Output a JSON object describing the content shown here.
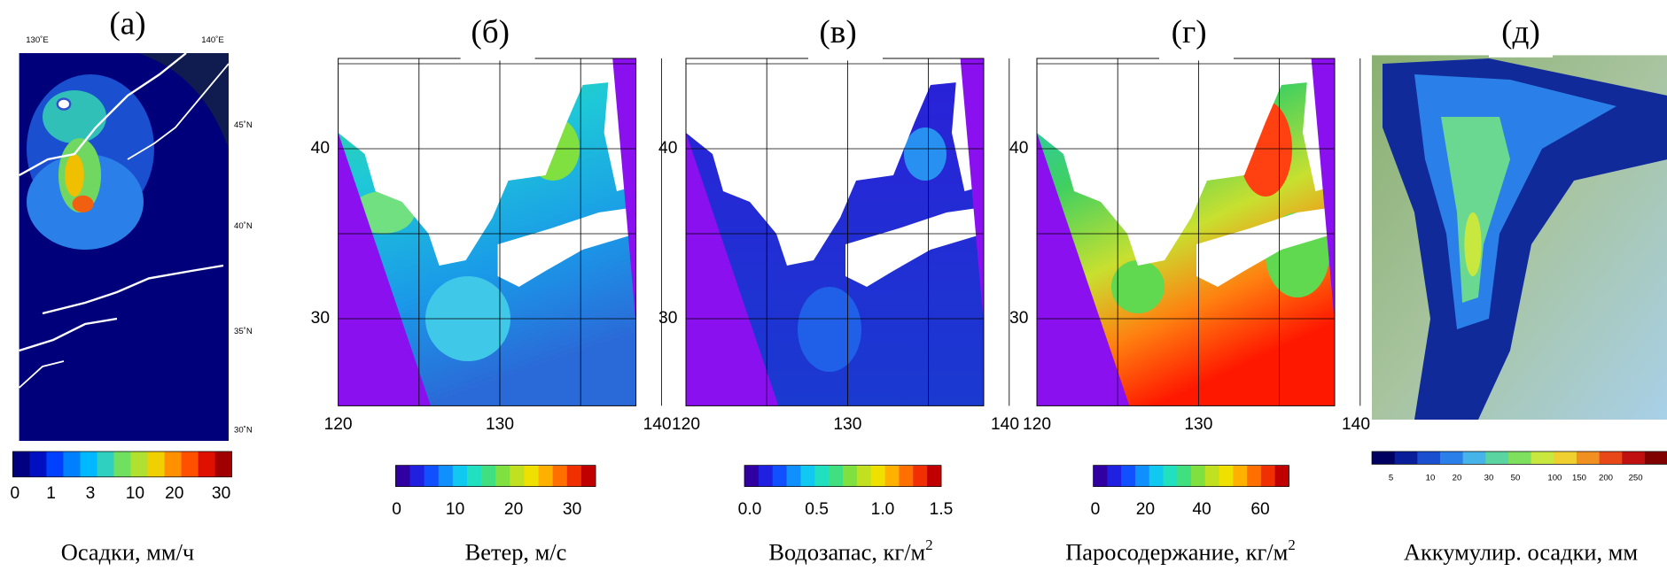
{
  "panels": [
    {
      "label": "(а)",
      "top_labels": [
        "130˚E",
        "140˚E"
      ],
      "side_labels": [
        "45˚N",
        "40˚N",
        "35˚N",
        "30˚N"
      ],
      "colorbar_labels": [
        "0",
        "1",
        "3",
        "10",
        "20",
        "30"
      ],
      "caption": "Осадки, мм/ч"
    },
    {
      "label": "(б)",
      "x_labels": [
        "120",
        "130",
        "140"
      ],
      "y_labels": [
        "40",
        "30"
      ],
      "colorbar_labels": [
        "0",
        "10",
        "20",
        "30"
      ],
      "caption": "Ветер, м/с"
    },
    {
      "label": "(в)",
      "x_labels": [
        "120",
        "130",
        "140"
      ],
      "y_labels": [
        "40",
        "30"
      ],
      "colorbar_labels": [
        "0.0",
        "0.5",
        "1.0",
        "1.5"
      ],
      "caption": "Водозапас, кг/м",
      "caption_sup": "2"
    },
    {
      "label": "(г)",
      "x_labels": [
        "120",
        "130",
        "140"
      ],
      "y_labels": [
        "40",
        "30"
      ],
      "colorbar_labels": [
        "0",
        "20",
        "40",
        "60"
      ],
      "caption": "Паросодержание,  кг/м",
      "caption_sup": "2"
    },
    {
      "label": "(д)",
      "colorbar_labels": [
        "5",
        "10",
        "20",
        "30",
        "50",
        "100",
        "150",
        "200",
        "250"
      ],
      "caption": "Аккумулир. осадки, мм"
    }
  ]
}
